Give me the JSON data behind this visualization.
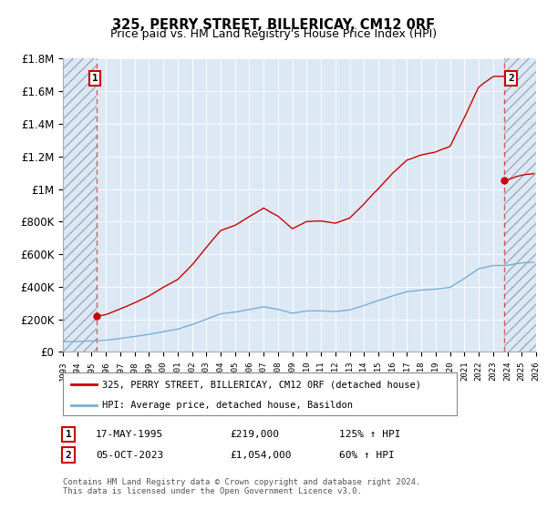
{
  "title": "325, PERRY STREET, BILLERICAY, CM12 0RF",
  "subtitle": "Price paid vs. HM Land Registry's House Price Index (HPI)",
  "legend_line1": "325, PERRY STREET, BILLERICAY, CM12 0RF (detached house)",
  "legend_line2": "HPI: Average price, detached house, Basildon",
  "sale1_date_x": 1995.38,
  "sale1_price": 219000,
  "sale1_label": "17-MAY-1995",
  "sale1_text": "£219,000",
  "sale1_hpi": "125% ↑ HPI",
  "sale2_date_x": 2023.75,
  "sale2_price": 1054000,
  "sale2_label": "05-OCT-2023",
  "sale2_text": "£1,054,000",
  "sale2_hpi": "60% ↑ HPI",
  "xmin": 1993.0,
  "xmax": 2026.0,
  "ymin": 0,
  "ymax": 1800000,
  "background_color": "#dce9f5",
  "red_line_color": "#cc0000",
  "blue_line_color": "#7aafd4",
  "footer": "Contains HM Land Registry data © Crown copyright and database right 2024.\nThis data is licensed under the Open Government Licence v3.0."
}
